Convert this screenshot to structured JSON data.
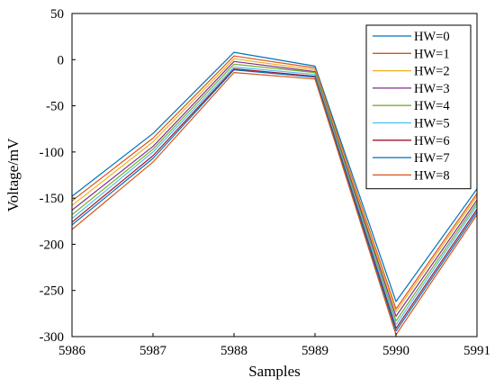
{
  "chart_data": {
    "type": "line",
    "title": "",
    "xlabel": "Samples",
    "ylabel": "Voltage/mV",
    "xlim": [
      5986,
      5991
    ],
    "ylim": [
      -300,
      50
    ],
    "xticks": [
      "5986",
      "5987",
      "5988",
      "5989",
      "5990",
      "5991"
    ],
    "yticks": [
      "50",
      "0",
      "-50",
      "-100",
      "-150",
      "-200",
      "-250",
      "-300"
    ],
    "grid": false,
    "legend_position": "top-right",
    "x": [
      5986,
      5987,
      5988,
      5989,
      5990,
      5991
    ],
    "series": [
      {
        "name": "HW=0",
        "color": "#0072BD",
        "values": [
          -148,
          -80,
          8,
          -7,
          -262,
          -140
        ]
      },
      {
        "name": "HW=1",
        "color": "#D95319",
        "values": [
          -153,
          -85,
          4,
          -9,
          -270,
          -145
        ]
      },
      {
        "name": "HW=2",
        "color": "#EDB120",
        "values": [
          -158,
          -89,
          1,
          -11,
          -273,
          -148
        ]
      },
      {
        "name": "HW=3",
        "color": "#7E2F8E",
        "values": [
          -163,
          -94,
          -2,
          -13,
          -278,
          -152
        ]
      },
      {
        "name": "HW=4",
        "color": "#77AC30",
        "values": [
          -168,
          -97,
          -5,
          -14,
          -283,
          -155
        ]
      },
      {
        "name": "HW=5",
        "color": "#4DBEEE",
        "values": [
          -172,
          -100,
          -8,
          -16,
          -287,
          -158
        ]
      },
      {
        "name": "HW=6",
        "color": "#A2142F",
        "values": [
          -176,
          -104,
          -10,
          -18,
          -291,
          -162
        ]
      },
      {
        "name": "HW=7",
        "color": "#0072BD",
        "values": [
          -179,
          -107,
          -11,
          -19,
          -294,
          -165
        ]
      },
      {
        "name": "HW=8",
        "color": "#D95319",
        "values": [
          -184,
          -111,
          -14,
          -21,
          -298,
          -168
        ]
      }
    ]
  }
}
